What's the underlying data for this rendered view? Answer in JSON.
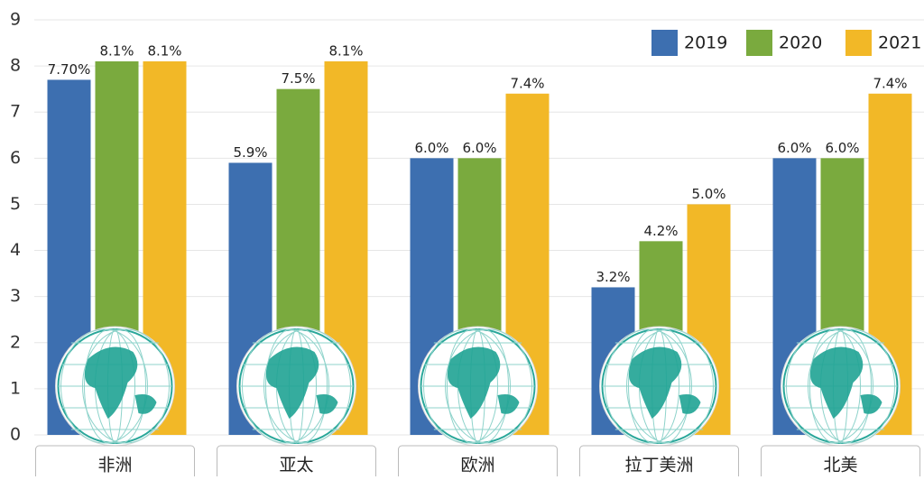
{
  "chart_data": {
    "type": "bar",
    "categories": [
      "非洲",
      "亚太",
      "欧洲",
      "拉丁美洲",
      "北美"
    ],
    "series": [
      {
        "name": "2019",
        "color": "#3d6fb0",
        "values": [
          7.7,
          5.9,
          6.0,
          3.2,
          6.0
        ],
        "value_labels": [
          "7.70%",
          "5.9%",
          "6.0%",
          "3.2%",
          "6.0%"
        ]
      },
      {
        "name": "2020",
        "color": "#7aaa3e",
        "values": [
          8.1,
          7.5,
          6.0,
          4.2,
          6.0
        ],
        "value_labels": [
          "8.1%",
          "7.5%",
          "6.0%",
          "4.2%",
          "6.0%"
        ]
      },
      {
        "name": "2021",
        "color": "#f2b827",
        "values": [
          8.1,
          8.1,
          7.4,
          5.0,
          7.4
        ],
        "value_labels": [
          "8.1%",
          "8.1%",
          "7.4%",
          "5.0%",
          "7.4%"
        ]
      }
    ],
    "ylim": [
      0,
      9
    ],
    "yticks": [
      0,
      1,
      2,
      3,
      4,
      5,
      6,
      7,
      8,
      9
    ],
    "grid": true,
    "legend": "top-right"
  }
}
